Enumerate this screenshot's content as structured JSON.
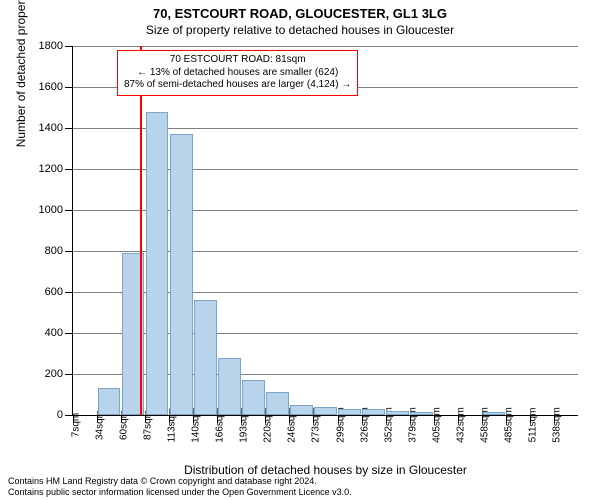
{
  "title": "70, ESTCOURT ROAD, GLOUCESTER, GL1 3LG",
  "subtitle": "Size of property relative to detached houses in Gloucester",
  "chart": {
    "type": "histogram",
    "ylabel": "Number of detached properties",
    "xlabel": "Distribution of detached houses by size in Gloucester",
    "ylim": [
      0,
      1800
    ],
    "ytick_step": 200,
    "yticks": [
      0,
      200,
      400,
      600,
      800,
      1000,
      1200,
      1400,
      1600,
      1800
    ],
    "xticks": [
      "7sqm",
      "34sqm",
      "60sqm",
      "87sqm",
      "113sqm",
      "140sqm",
      "166sqm",
      "193sqm",
      "220sqm",
      "246sqm",
      "273sqm",
      "299sqm",
      "326sqm",
      "352sqm",
      "379sqm",
      "405sqm",
      "432sqm",
      "458sqm",
      "485sqm",
      "511sqm",
      "538sqm"
    ],
    "bar_heights": [
      0,
      130,
      790,
      1480,
      1370,
      560,
      280,
      170,
      110,
      50,
      40,
      30,
      30,
      20,
      15,
      0,
      0,
      15,
      0,
      0
    ],
    "bar_color": "#b8d4ea",
    "bar_border_color": "#7aa7c9",
    "grid_color": "#808080",
    "background_color": "#ffffff",
    "marker_position_index": 3,
    "marker_color": "#ff0000",
    "annotation_border_color": "#ff0000",
    "annotation_lines": [
      "70 ESTCOURT ROAD: 81sqm",
      "← 13% of detached houses are smaller (624)",
      "87% of semi-detached houses are larger (4,124) →"
    ],
    "title_fontsize": 13,
    "subtitle_fontsize": 12,
    "label_fontsize": 12,
    "tick_fontsize": 11
  },
  "footer": {
    "line1": "Contains HM Land Registry data © Crown copyright and database right 2024.",
    "line2": "Contains public sector information licensed under the Open Government Licence v3.0."
  }
}
